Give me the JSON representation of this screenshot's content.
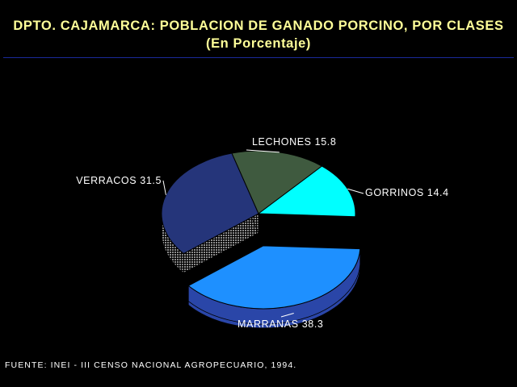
{
  "title": "DPTO. CAJAMARCA: POBLACION DE GANADO PORCINO, POR CLASES",
  "subtitle": "(En Porcentaje)",
  "source": "FUENTE: INEI - III CENSO NACIONAL AGROPECUARIO, 1994.",
  "chart_data": {
    "type": "pie",
    "three_d": true,
    "categories": [
      "LECHONES",
      "GORRINOS",
      "MARRANAS",
      "VERRACOS"
    ],
    "values": [
      15.8,
      14.4,
      38.3,
      31.5
    ],
    "labels": [
      "LECHONES  15.8",
      "GORRINOS  14.4",
      "MARRANAS  38.3",
      "VERRACOS  31.5"
    ],
    "exploded": "MARRANAS",
    "colors": {
      "LECHONES": "#3f5a3f",
      "GORRINOS": "#00ffff",
      "MARRANAS": "#1e90ff",
      "VERRACOS": "#25357a"
    },
    "side_colors": {
      "LECHONES": "#26381f",
      "GORRINOS": "#5fd0d0",
      "MARRANAS": "#2a46a8",
      "VERRACOS": "#3a4a8a"
    }
  }
}
